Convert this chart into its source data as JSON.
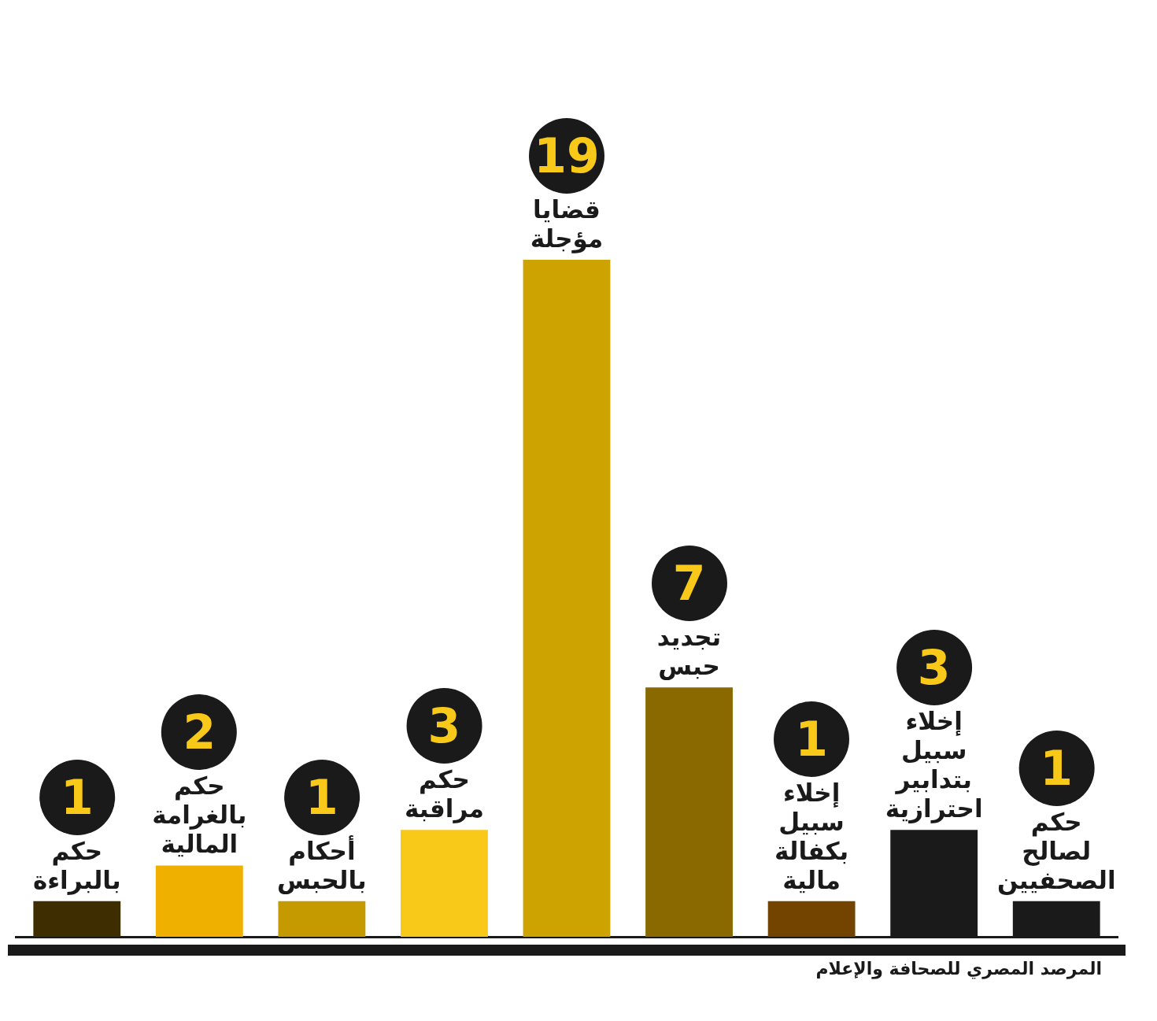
{
  "chart_data": {
    "type": "bar",
    "categories": [
      "حكم بالبراءة",
      "حكم بالغرامة المالية",
      "أحكام بالحبس",
      "حكم مراقبة",
      "قضايا مؤجلة",
      "تجديد حبس",
      "إخلاء سبيل بكفالة مالية",
      "إخلاء سبيل بتدابير احترازية",
      "حكم لصالح الصحفيين"
    ],
    "values": [
      1,
      2,
      1,
      3,
      19,
      7,
      1,
      3,
      1
    ],
    "colors": [
      "#3d2d00",
      "#f0b000",
      "#c49a00",
      "#f8c918",
      "#cca300",
      "#8a6a00",
      "#734400",
      "#1a1a1a",
      "#1a1a1a"
    ],
    "data_labels": true,
    "grid": false,
    "legend": false,
    "annotations": [
      "المرصد المصري للصحافة والإعلام"
    ]
  }
}
